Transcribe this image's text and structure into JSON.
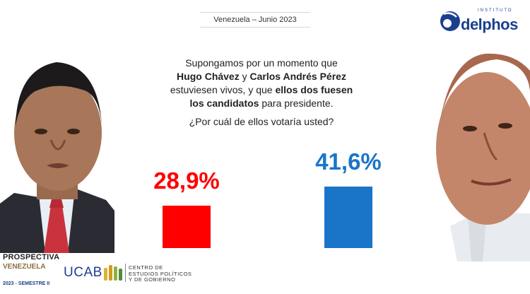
{
  "header": {
    "title": "Venezuela  –  Junio 2023"
  },
  "logo": {
    "superscript": "INSTITUTO",
    "name": "delphos"
  },
  "question": {
    "line1": "Supongamos por un momento que",
    "name1": "Hugo Chávez",
    "conj": " y ",
    "name2": "Carlos Andrés Pérez",
    "line3a": "estuviesen vivos, y que ",
    "line3b": "ellos dos fuesen",
    "line4a": "los candidatos",
    "line4b": " para presidente.",
    "ask": "¿Por cuál de ellos votaría usted?"
  },
  "chart_data": {
    "type": "bar",
    "categories": [
      "Hugo Chávez",
      "Carlos Andrés Pérez"
    ],
    "values": [
      28.9,
      41.6
    ],
    "value_labels": [
      "28,9%",
      "41,6%"
    ],
    "colors": [
      "#ff0000",
      "#1a75c9"
    ],
    "ylim": [
      0,
      45
    ],
    "grid": false,
    "title": "",
    "xlabel": "",
    "ylabel": ""
  },
  "footer": {
    "prospectiva_title": "PROSPECTIVA",
    "prospectiva_sub": "VENEZUELA",
    "prospectiva_year": "2023 - SEMESTRE II",
    "ucab": "UCAB",
    "cepg_line1": "CENTRO DE",
    "cepg_line2": "ESTUDIOS POLÍTICOS",
    "cepg_line3": "Y DE GOBIERNO"
  }
}
